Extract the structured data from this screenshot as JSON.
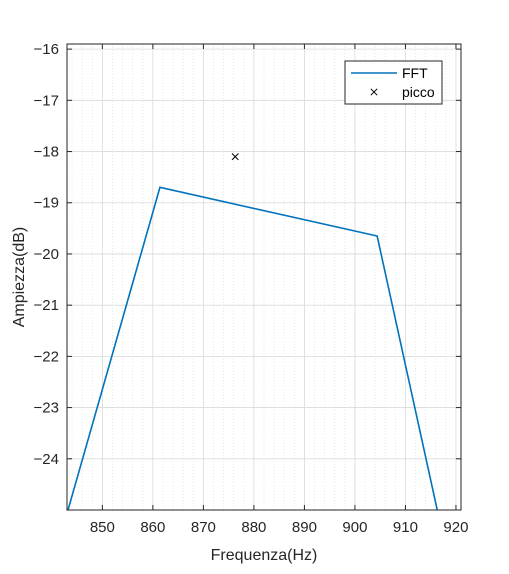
{
  "chart_data": {
    "type": "line",
    "xlabel": "Frequenza(Hz)",
    "ylabel": "Ampiezza(dB)",
    "xlim": [
      843,
      921
    ],
    "ylim": [
      -25,
      -15.9
    ],
    "xticks": [
      850,
      860,
      870,
      880,
      890,
      900,
      910,
      920
    ],
    "yticks": [
      -16,
      -17,
      -18,
      -19,
      -20,
      -21,
      -22,
      -23,
      -24
    ],
    "grid": true,
    "minor_grid_x": true,
    "legend_position": "top-right",
    "series": [
      {
        "name": "FFT",
        "style": "line",
        "color": "#0072BD",
        "x": [
          843.2,
          861.4,
          904.4,
          916.3
        ],
        "y": [
          -25.0,
          -18.7,
          -19.65,
          -25.0
        ]
      },
      {
        "name": "picco",
        "style": "marker-x",
        "color": "#000000",
        "x": [
          876.3
        ],
        "y": [
          -18.1
        ]
      }
    ]
  }
}
